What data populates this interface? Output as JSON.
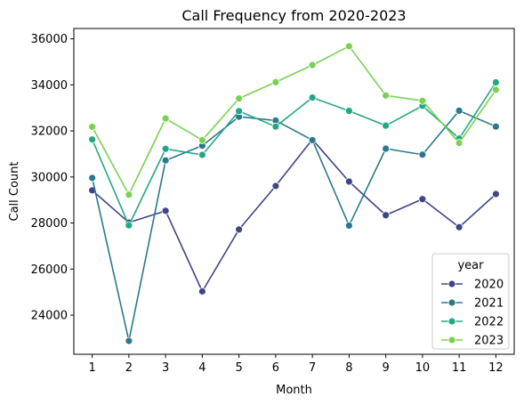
{
  "chart_data": {
    "type": "line",
    "title": "Call Frequency from 2020-2023",
    "xlabel": "Month",
    "ylabel": "Call Count",
    "x": [
      1,
      2,
      3,
      4,
      5,
      6,
      7,
      8,
      9,
      10,
      11,
      12
    ],
    "xlim": [
      0.5,
      12.5
    ],
    "ylim": [
      22300,
      36450
    ],
    "yticks": [
      24000,
      26000,
      28000,
      30000,
      32000,
      34000,
      36000
    ],
    "legend": {
      "title": "year",
      "placement": "lower-right"
    },
    "grid": false,
    "series": [
      {
        "name": "2020",
        "color": "#414487",
        "values": [
          29420,
          28020,
          28530,
          25030,
          27720,
          29610,
          31630,
          29800,
          28340,
          29040,
          27820,
          29260
        ]
      },
      {
        "name": "2021",
        "color": "#2a788e",
        "values": [
          29960,
          22880,
          30720,
          31360,
          32620,
          32450,
          31600,
          27890,
          31230,
          30970,
          32880,
          32190
        ]
      },
      {
        "name": "2022",
        "color": "#22a884",
        "values": [
          31630,
          27900,
          31220,
          30960,
          32860,
          32190,
          33450,
          32870,
          32230,
          33090,
          31670,
          34110
        ]
      },
      {
        "name": "2023",
        "color": "#7ad151",
        "values": [
          32180,
          29230,
          32540,
          31600,
          33410,
          34120,
          34860,
          35680,
          33540,
          33310,
          31480,
          33790
        ]
      }
    ]
  }
}
